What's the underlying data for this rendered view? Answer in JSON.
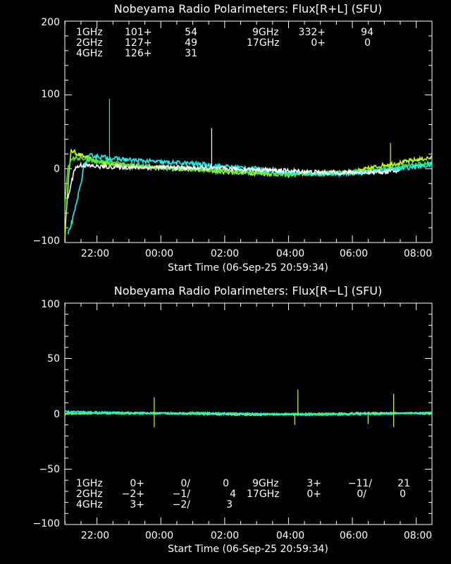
{
  "colors": {
    "background": "#000000",
    "axes": "#ffffff",
    "f1": "#ffffff",
    "f2": "#00ffff",
    "f4": "#3cf03c",
    "f9": "#c8ff00",
    "f17": "#ff9a28"
  },
  "chart_data": [
    {
      "type": "line",
      "title": "Nobeyama Radio Polarimeters: Flux[R+L] (SFU)",
      "xlabel": "Start Time (06-Sep-25 20:59:34)",
      "ylabel": "",
      "x_range_hours_since_start": [
        0,
        11.5
      ],
      "ylim": [
        -100,
        200
      ],
      "yticks": [
        {
          "label": "200",
          "value": 200
        },
        {
          "label": "100",
          "value": 100
        },
        {
          "label": "0",
          "value": 0
        },
        {
          "label": "−100",
          "value": -100
        }
      ],
      "xticks": [
        "22:00",
        "00:00",
        "02:00",
        "04:00",
        "06:00",
        "08:00"
      ],
      "legend": [
        {
          "freq": "1GHz",
          "c1": "101+",
          "c2": "54",
          "color_key": "f1"
        },
        {
          "freq": "2GHz",
          "c1": "127+",
          "c2": "49",
          "color_key": "f2"
        },
        {
          "freq": "4GHz",
          "c1": "126+",
          "c2": "31",
          "color_key": "f4"
        },
        {
          "freq": "9GHz",
          "c1": "332+",
          "c2": "94",
          "color_key": "f9"
        },
        {
          "freq": "17GHz",
          "c1": "0+",
          "c2": "0",
          "color_key": "f17"
        }
      ],
      "series": [
        {
          "color_key": "f9",
          "points": [
            [
              0.0,
              -95
            ],
            [
              0.1,
              -20
            ],
            [
              0.2,
              25
            ],
            [
              0.5,
              18
            ],
            [
              1.0,
              10
            ],
            [
              2,
              4
            ],
            [
              3,
              1
            ],
            [
              4,
              -1
            ],
            [
              5,
              -4
            ],
            [
              6,
              -6
            ],
            [
              7,
              -8
            ],
            [
              8,
              -6
            ],
            [
              9,
              -5
            ],
            [
              10,
              5
            ],
            [
              10.5,
              8
            ],
            [
              11,
              12
            ],
            [
              11.5,
              15
            ]
          ]
        },
        {
          "color_key": "f4",
          "points": [
            [
              0.0,
              -50
            ],
            [
              0.1,
              5
            ],
            [
              0.3,
              15
            ],
            [
              1,
              10
            ],
            [
              2,
              5
            ],
            [
              3,
              2
            ],
            [
              4,
              0
            ],
            [
              5,
              -3
            ],
            [
              6,
              -5
            ],
            [
              7,
              -7
            ],
            [
              8,
              -6
            ],
            [
              9,
              -5
            ],
            [
              10,
              0
            ],
            [
              11,
              5
            ],
            [
              11.5,
              8
            ]
          ]
        },
        {
          "color_key": "f2",
          "points": [
            [
              0.1,
              -90
            ],
            [
              0.3,
              -60
            ],
            [
              0.5,
              -20
            ],
            [
              0.6,
              5
            ],
            [
              0.8,
              18
            ],
            [
              1.5,
              14
            ],
            [
              2,
              12
            ],
            [
              3,
              9
            ],
            [
              4,
              7
            ],
            [
              5,
              3
            ],
            [
              6,
              0
            ],
            [
              7,
              -5
            ],
            [
              8,
              -7
            ],
            [
              9,
              -6
            ],
            [
              9.5,
              -4
            ],
            [
              10,
              -2
            ],
            [
              10.5,
              0
            ],
            [
              11,
              3
            ],
            [
              11.5,
              5
            ]
          ]
        },
        {
          "color_key": "f1",
          "points": [
            [
              0.1,
              -40
            ],
            [
              0.3,
              0
            ],
            [
              0.5,
              5
            ],
            [
              1,
              3
            ],
            [
              2,
              2
            ],
            [
              3,
              2
            ],
            [
              4,
              1
            ],
            [
              5,
              0
            ],
            [
              6,
              -1
            ],
            [
              7,
              -3
            ],
            [
              8,
              -5
            ],
            [
              9,
              -5
            ],
            [
              10,
              -4
            ],
            [
              10.5,
              -3
            ]
          ]
        }
      ],
      "spikes": [
        {
          "color_key": "f4",
          "x": 1.4,
          "y": 95
        },
        {
          "color_key": "f1",
          "x": 4.6,
          "y": 55
        },
        {
          "color_key": "f9",
          "x": 10.2,
          "y": 35
        }
      ]
    },
    {
      "type": "line",
      "title": "Nobeyama Radio Polarimeters: Flux[R−L] (SFU)",
      "xlabel": "Start Time (06-Sep-25 20:59:34)",
      "ylabel": "",
      "x_range_hours_since_start": [
        0,
        11.5
      ],
      "ylim": [
        -100,
        100
      ],
      "yticks": [
        {
          "label": "100",
          "value": 100
        },
        {
          "label": "50",
          "value": 50
        },
        {
          "label": "0",
          "value": 0
        },
        {
          "label": "−50",
          "value": -50
        },
        {
          "label": "−100",
          "value": -100
        }
      ],
      "xticks": [
        "22:00",
        "00:00",
        "02:00",
        "04:00",
        "06:00",
        "08:00"
      ],
      "legend": [
        {
          "freq": "1GHz",
          "c1": "0+",
          "c2": "0/",
          "c3": "0",
          "color_key": "f1"
        },
        {
          "freq": "2GHz",
          "c1": "−2+",
          "c2": "−1/",
          "c3": "4",
          "color_key": "f2"
        },
        {
          "freq": "4GHz",
          "c1": "3+",
          "c2": "−2/",
          "c3": "3",
          "color_key": "f4"
        },
        {
          "freq": "9GHz",
          "c1": "3+",
          "c2": "−11/",
          "c3": "21",
          "color_key": "f9"
        },
        {
          "freq": "17GHz",
          "c1": "0+",
          "c2": "0/",
          "c3": "0",
          "color_key": "f17"
        }
      ],
      "series": [
        {
          "color_key": "f9",
          "points": [
            [
              0,
              0
            ],
            [
              2,
              1
            ],
            [
              4,
              0
            ],
            [
              6,
              -1
            ],
            [
              8,
              0
            ],
            [
              10,
              1
            ],
            [
              11.5,
              0
            ]
          ]
        },
        {
          "color_key": "f4",
          "points": [
            [
              0,
              1
            ],
            [
              2,
              0
            ],
            [
              4,
              1
            ],
            [
              6,
              0
            ],
            [
              8,
              0
            ],
            [
              10,
              0
            ],
            [
              11.5,
              1
            ]
          ]
        },
        {
          "color_key": "f2",
          "points": [
            [
              0,
              2
            ],
            [
              2,
              1
            ],
            [
              4,
              0
            ],
            [
              6,
              0
            ],
            [
              8,
              -1
            ],
            [
              10,
              0
            ],
            [
              11.5,
              1
            ]
          ]
        }
      ],
      "spikes": [
        {
          "color_key": "f9",
          "x": 2.8,
          "y": 15
        },
        {
          "color_key": "f9",
          "x": 2.8,
          "y": -12
        },
        {
          "color_key": "f9",
          "x": 7.3,
          "y": 22
        },
        {
          "color_key": "f9",
          "x": 7.2,
          "y": -10
        },
        {
          "color_key": "f9",
          "x": 10.3,
          "y": 18
        },
        {
          "color_key": "f9",
          "x": 10.3,
          "y": -12
        },
        {
          "color_key": "f9",
          "x": 9.5,
          "y": -9
        }
      ]
    }
  ]
}
